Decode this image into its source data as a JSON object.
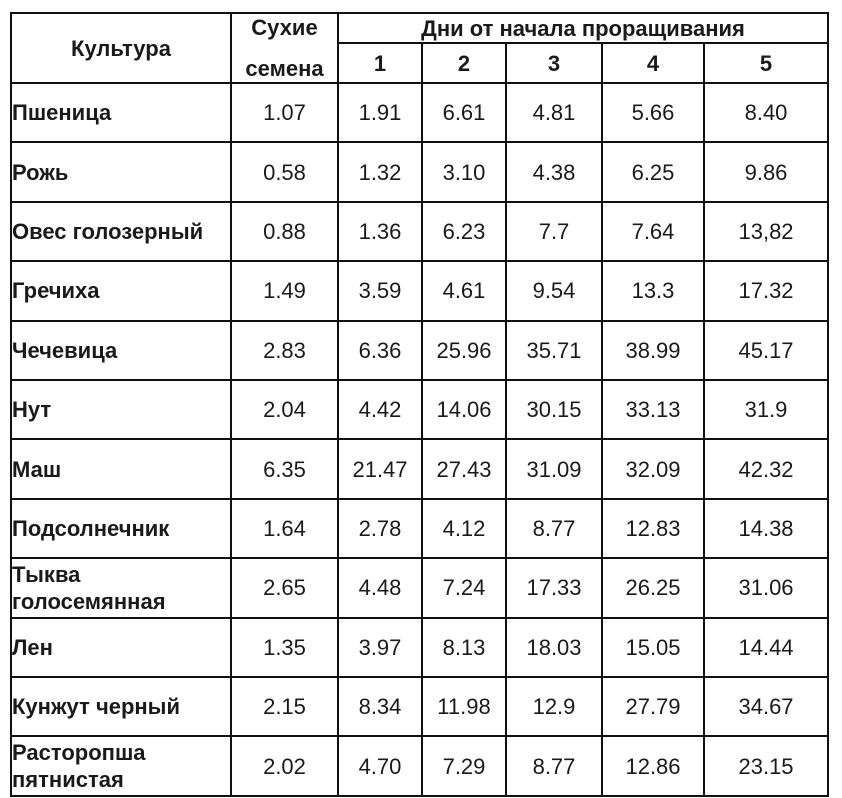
{
  "table": {
    "header": {
      "culture": "Культура",
      "dry_line1": "Сухие",
      "dry_line2": "семена",
      "days_group": "Дни от начала проращивания",
      "days": [
        "1",
        "2",
        "3",
        "4",
        "5"
      ]
    },
    "rows": [
      {
        "name": "Пшеница",
        "dry": "1.07",
        "d1": "1.91",
        "d2": "6.61",
        "d3": "4.81",
        "d4": "5.66",
        "d5": "8.40"
      },
      {
        "name": "Рожь",
        "dry": "0.58",
        "d1": "1.32",
        "d2": "3.10",
        "d3": "4.38",
        "d4": "6.25",
        "d5": "9.86"
      },
      {
        "name": "Овес голозерный",
        "dry": "0.88",
        "d1": "1.36",
        "d2": "6.23",
        "d3": "7.7",
        "d4": "7.64",
        "d5": "13,82"
      },
      {
        "name": "Гречиха",
        "dry": "1.49",
        "d1": "3.59",
        "d2": "4.61",
        "d3": "9.54",
        "d4": "13.3",
        "d5": "17.32"
      },
      {
        "name": "Чечевица",
        "dry": "2.83",
        "d1": "6.36",
        "d2": "25.96",
        "d3": "35.71",
        "d4": "38.99",
        "d5": "45.17"
      },
      {
        "name": "Нут",
        "dry": "2.04",
        "d1": "4.42",
        "d2": "14.06",
        "d3": "30.15",
        "d4": "33.13",
        "d5": "31.9"
      },
      {
        "name": "Маш",
        "dry": "6.35",
        "d1": "21.47",
        "d2": "27.43",
        "d3": "31.09",
        "d4": "32.09",
        "d5": "42.32"
      },
      {
        "name": "Подсолнечник",
        "dry": "1.64",
        "d1": "2.78",
        "d2": "4.12",
        "d3": "8.77",
        "d4": "12.83",
        "d5": "14.38"
      },
      {
        "name": "Тыква голосемянная",
        "dry": "2.65",
        "d1": "4.48",
        "d2": "7.24",
        "d3": "17.33",
        "d4": "26.25",
        "d5": "31.06"
      },
      {
        "name": "Лен",
        "dry": "1.35",
        "d1": "3.97",
        "d2": "8.13",
        "d3": "18.03",
        "d4": "15.05",
        "d5": "14.44"
      },
      {
        "name": "Кунжут черный",
        "dry": "2.15",
        "d1": "8.34",
        "d2": "11.98",
        "d3": "12.9",
        "d4": "27.79",
        "d5": "34.67"
      },
      {
        "name": "Расторопша пятнистая",
        "dry": "2.02",
        "d1": "4.70",
        "d2": "7.29",
        "d3": "8.77",
        "d4": "12.86",
        "d5": "23.15"
      }
    ]
  }
}
